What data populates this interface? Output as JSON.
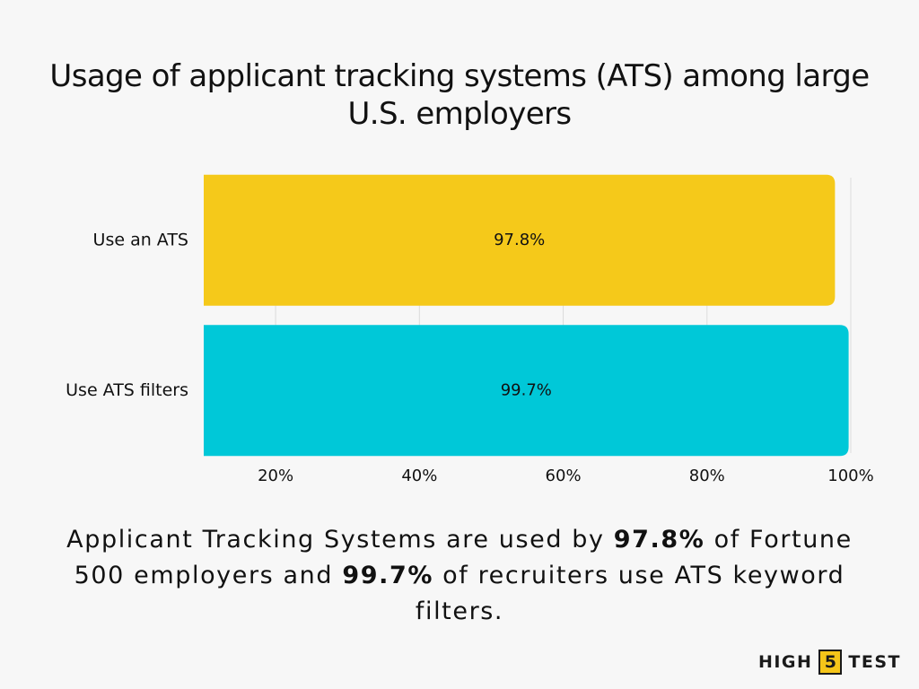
{
  "chart_data": {
    "type": "bar",
    "orientation": "horizontal",
    "title": "Usage of applicant tracking systems (ATS) among large U.S. employers",
    "categories": [
      "Use an ATS",
      "Use ATS filters"
    ],
    "values": [
      97.8,
      99.7
    ],
    "data_labels": [
      "97.8%",
      "99.7%"
    ],
    "colors": [
      "#f5c91a",
      "#00c8d8"
    ],
    "x_ticks": [
      20,
      40,
      60,
      80,
      100
    ],
    "x_tick_labels": [
      "20%",
      "40%",
      "60%",
      "80%",
      "100%"
    ],
    "xlim": [
      10,
      100
    ],
    "grid": true,
    "legend": "none"
  },
  "caption": {
    "part1": "Applicant Tracking Systems are used by ",
    "bold1": "97.8%",
    "part2": " of Fortune 500 employers and ",
    "bold2": "99.7%",
    "part3": " of recruiters use ATS keyword filters."
  },
  "logo": {
    "text_left": "HIGH",
    "number": "5",
    "text_right": "TEST",
    "accent_color": "#f5c519"
  }
}
